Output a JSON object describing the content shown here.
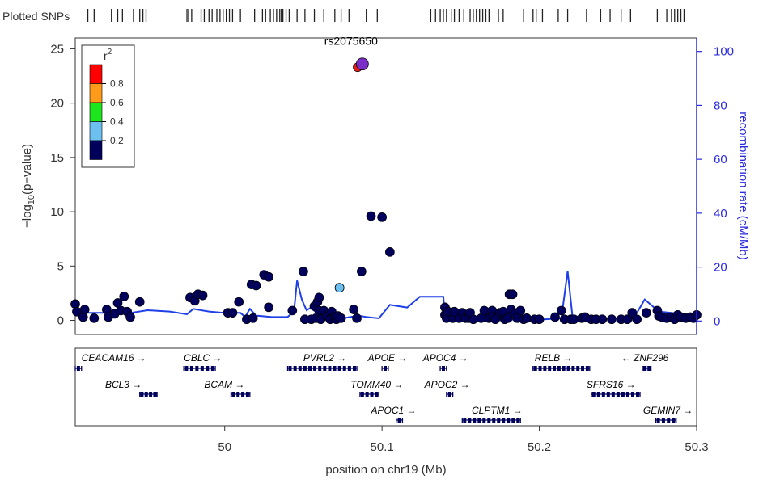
{
  "chart_data": {
    "type": "scatter",
    "title": "",
    "xlabel": "position on chr19 (Mb)",
    "ylabel": "-log10(p-value)",
    "ylabel_parts": {
      "pre": "−log",
      "sub": "10",
      "post": "(p−value)"
    },
    "y2label": "recombination rate (cM/Mb)",
    "xlim": [
      49.905,
      50.3
    ],
    "ylim": [
      -1.3,
      26
    ],
    "y2lim": [
      -5,
      105
    ],
    "x_ticks": [
      50,
      50.1,
      50.2,
      50.3
    ],
    "x_tick_labels": [
      "50",
      "50.1",
      "50.2",
      "50.3"
    ],
    "y_ticks": [
      0,
      5,
      10,
      15,
      20,
      25
    ],
    "y_tick_labels": [
      "0",
      "5",
      "10",
      "15",
      "20",
      "25"
    ],
    "y2_ticks": [
      0,
      20,
      40,
      60,
      80,
      100
    ],
    "y2_tick_labels": [
      "0",
      "20",
      "40",
      "60",
      "80",
      "100"
    ],
    "plotted_snps_label": "Plotted SNPs",
    "lead_snp": {
      "label": "rs2075650",
      "x": 50.0875,
      "y": 23.6,
      "color": "#7b2cc9"
    },
    "legend": {
      "title": "r",
      "title_sup": "2",
      "placement": "top-left",
      "labels": [
        "0.8",
        "0.6",
        "0.4",
        "0.2"
      ],
      "colors": [
        "#ff0000",
        "#ff9a1a",
        "#1ee61e",
        "#6cc0f0",
        "#00005c"
      ]
    },
    "colors": {
      "recomb": "#1f3fe8",
      "point_low": "#00005c",
      "point_mid": "#6cc0f0",
      "point_high": "#e31a1c",
      "axis_right": "#2a2adf",
      "gene": "#00005c"
    },
    "points": [
      [
        49.905,
        1.5
      ],
      [
        49.906,
        0.8
      ],
      [
        49.91,
        0.3
      ],
      [
        49.911,
        1.0
      ],
      [
        49.917,
        0.2
      ],
      [
        49.925,
        1.0
      ],
      [
        49.926,
        0.3
      ],
      [
        49.93,
        0.6
      ],
      [
        49.932,
        1.6
      ],
      [
        49.934,
        0.9
      ],
      [
        49.936,
        2.2
      ],
      [
        49.938,
        0.8
      ],
      [
        49.94,
        0.3
      ],
      [
        49.946,
        1.7
      ],
      [
        49.978,
        2.1
      ],
      [
        49.981,
        1.8
      ],
      [
        49.983,
        2.4
      ],
      [
        49.986,
        2.3
      ],
      [
        50.002,
        0.7
      ],
      [
        50.005,
        0.7
      ],
      [
        50.009,
        1.7
      ],
      [
        50.014,
        0.1
      ],
      [
        50.017,
        3.3
      ],
      [
        50.018,
        0.2
      ],
      [
        50.02,
        3.2
      ],
      [
        50.025,
        4.2
      ],
      [
        50.028,
        4.0
      ],
      [
        50.028,
        1.2
      ],
      [
        50.043,
        0.9
      ],
      [
        50.05,
        4.5
      ],
      [
        50.051,
        0.1
      ],
      [
        50.055,
        0.1
      ],
      [
        50.057,
        1.3
      ],
      [
        50.058,
        0.2
      ],
      [
        50.059,
        1.7
      ],
      [
        50.06,
        2.1
      ],
      [
        50.06,
        0.9
      ],
      [
        50.061,
        0.1
      ],
      [
        50.063,
        0.9
      ],
      [
        50.065,
        0.4
      ],
      [
        50.067,
        0.1
      ],
      [
        50.068,
        0.8
      ],
      [
        50.069,
        0.2
      ],
      [
        50.07,
        0.3
      ],
      [
        50.071,
        0.1
      ],
      [
        50.072,
        0.4
      ],
      [
        50.074,
        0.2
      ],
      [
        50.073,
        3.0
      ],
      [
        50.082,
        1.0
      ],
      [
        50.084,
        0.2
      ],
      [
        50.087,
        4.5
      ],
      [
        50.093,
        9.6
      ],
      [
        50.1,
        9.5
      ],
      [
        50.105,
        6.3
      ],
      [
        50.14,
        1.2
      ],
      [
        50.14,
        0.5
      ],
      [
        50.141,
        0.2
      ],
      [
        50.142,
        0.8
      ],
      [
        50.145,
        0.2
      ],
      [
        50.146,
        0.8
      ],
      [
        50.149,
        0.2
      ],
      [
        50.151,
        0.7
      ],
      [
        50.153,
        0.2
      ],
      [
        50.155,
        0.2
      ],
      [
        50.156,
        0.7
      ],
      [
        50.158,
        0.1
      ],
      [
        50.163,
        0.2
      ],
      [
        50.165,
        0.9
      ],
      [
        50.168,
        0.2
      ],
      [
        50.17,
        0.9
      ],
      [
        50.17,
        0.3
      ],
      [
        50.172,
        0.1
      ],
      [
        50.175,
        0.7
      ],
      [
        50.177,
        0.8
      ],
      [
        50.178,
        0.1
      ],
      [
        50.18,
        0.2
      ],
      [
        50.181,
        2.4
      ],
      [
        50.182,
        1.0
      ],
      [
        50.183,
        2.4
      ],
      [
        50.184,
        0.7
      ],
      [
        50.186,
        0.2
      ],
      [
        50.188,
        0.9
      ],
      [
        50.19,
        0.1
      ],
      [
        50.192,
        0.2
      ],
      [
        50.197,
        0.1
      ],
      [
        50.2,
        0.1
      ],
      [
        50.21,
        0.3
      ],
      [
        50.214,
        0.9
      ],
      [
        50.216,
        0.1
      ],
      [
        50.22,
        0.1
      ],
      [
        50.222,
        0.1
      ],
      [
        50.227,
        0.2
      ],
      [
        50.229,
        0.3
      ],
      [
        50.233,
        0.1
      ],
      [
        50.236,
        0.1
      ],
      [
        50.24,
        0.1
      ],
      [
        50.246,
        0.1
      ],
      [
        50.252,
        0.1
      ],
      [
        50.256,
        0.1
      ],
      [
        50.259,
        0.7
      ],
      [
        50.262,
        0.1
      ],
      [
        50.268,
        0.7
      ],
      [
        50.275,
        0.9
      ],
      [
        50.276,
        0.4
      ],
      [
        50.278,
        0.3
      ],
      [
        50.281,
        0.2
      ],
      [
        50.284,
        0.3
      ],
      [
        50.286,
        0.1
      ],
      [
        50.288,
        0.5
      ],
      [
        50.29,
        0.3
      ],
      [
        50.293,
        0.2
      ],
      [
        50.296,
        0.3
      ],
      [
        50.298,
        0.2
      ],
      [
        50.3,
        0.5
      ]
    ],
    "colored_points": [
      {
        "x": 50.073,
        "y": 3.0,
        "color": "#6cc0f0"
      },
      {
        "x": 50.0845,
        "y": 23.3,
        "color": "#e31a1c"
      }
    ],
    "recomb_rate": [
      [
        49.905,
        3.0
      ],
      [
        49.92,
        3.0
      ],
      [
        49.94,
        3.0
      ],
      [
        49.951,
        4.0
      ],
      [
        49.965,
        3.5
      ],
      [
        49.976,
        2.5
      ],
      [
        49.98,
        4.5
      ],
      [
        49.99,
        3.5
      ],
      [
        50.0,
        3.0
      ],
      [
        50.01,
        3.0
      ],
      [
        50.013,
        1.5
      ],
      [
        50.016,
        4.5
      ],
      [
        50.02,
        2.0
      ],
      [
        50.03,
        1.5
      ],
      [
        50.04,
        1.5
      ],
      [
        50.044,
        3.5
      ],
      [
        50.046,
        15.0
      ],
      [
        50.049,
        8.0
      ],
      [
        50.052,
        4.0
      ],
      [
        50.055,
        5.0
      ],
      [
        50.06,
        2.0
      ],
      [
        50.075,
        1.0
      ],
      [
        50.085,
        2.0
      ],
      [
        50.09,
        1.5
      ],
      [
        50.098,
        1.0
      ],
      [
        50.105,
        6.0
      ],
      [
        50.116,
        5.0
      ],
      [
        50.124,
        9.0
      ],
      [
        50.133,
        9.0
      ],
      [
        50.139,
        9.0
      ],
      [
        50.14,
        1.0
      ],
      [
        50.15,
        0.5
      ],
      [
        50.2,
        0.5
      ],
      [
        50.214,
        1.0
      ],
      [
        50.218,
        18.5
      ],
      [
        50.221,
        2.0
      ],
      [
        50.23,
        1.0
      ],
      [
        50.26,
        1.0
      ],
      [
        50.267,
        8.0
      ],
      [
        50.276,
        3.5
      ],
      [
        50.3,
        2.0
      ]
    ],
    "snp_rug_x": [
      49.913,
      49.917,
      49.928,
      49.932,
      49.935,
      49.942,
      49.946,
      49.948,
      49.95,
      49.976,
      49.977,
      49.979,
      49.985,
      49.987,
      49.99,
      49.992,
      49.995,
      49.997,
      49.999,
      50.001,
      50.003,
      50.005,
      50.01,
      50.019,
      50.024,
      50.026,
      50.029,
      50.031,
      50.033,
      50.035,
      50.036,
      50.037,
      50.039,
      50.041,
      50.046,
      50.051,
      50.057,
      50.063,
      50.07,
      50.074,
      50.079,
      50.09,
      50.097,
      50.131,
      50.134,
      50.137,
      50.139,
      50.141,
      50.144,
      50.146,
      50.149,
      50.152,
      50.156,
      50.158,
      50.16,
      50.162,
      50.164,
      50.166,
      50.168,
      50.174,
      50.177,
      50.19,
      50.196,
      50.198,
      50.202,
      50.212,
      50.218,
      50.23,
      50.239,
      50.245,
      50.252,
      50.258,
      50.275,
      50.281,
      50.284,
      50.286,
      50.288,
      50.29,
      50.292
    ],
    "genes": [
      {
        "name": "CEACAM16",
        "dir": "→",
        "start": 49.905,
        "end": 49.909,
        "row": 0,
        "label_x": 49.909
      },
      {
        "name": "CBLC",
        "dir": "→",
        "start": 49.974,
        "end": 49.994,
        "row": 0,
        "label_x": 49.974
      },
      {
        "name": "PVRL2",
        "dir": "→",
        "start": 50.04,
        "end": 50.084,
        "row": 0,
        "label_x": 50.05
      },
      {
        "name": "APOE",
        "dir": "→",
        "start": 50.1,
        "end": 50.104,
        "row": 0,
        "label_x": 50.091
      },
      {
        "name": "APOC4",
        "dir": "→",
        "start": 50.137,
        "end": 50.141,
        "row": 0,
        "label_x": 50.126
      },
      {
        "name": "RELB",
        "dir": "→",
        "start": 50.196,
        "end": 50.232,
        "row": 0,
        "label_x": 50.197
      },
      {
        "name": "ZNF296",
        "dir": "←",
        "start": 50.266,
        "end": 50.271,
        "row": 0,
        "label_x": 50.252
      },
      {
        "name": "BCL3",
        "dir": "→",
        "start": 49.946,
        "end": 49.957,
        "row": 1,
        "label_x": 49.924
      },
      {
        "name": "BCAM",
        "dir": "→",
        "start": 50.004,
        "end": 50.016,
        "row": 1,
        "label_x": 49.987
      },
      {
        "name": "TOMM40",
        "dir": "→",
        "start": 50.086,
        "end": 50.098,
        "row": 1,
        "label_x": 50.08
      },
      {
        "name": "APOC2",
        "dir": "→",
        "start": 50.141,
        "end": 50.145,
        "row": 1,
        "label_x": 50.127
      },
      {
        "name": "SFRS16",
        "dir": "→",
        "start": 50.233,
        "end": 50.264,
        "row": 1,
        "label_x": 50.23
      },
      {
        "name": "APOC1",
        "dir": "→",
        "start": 50.109,
        "end": 50.113,
        "row": 2,
        "label_x": 50.093
      },
      {
        "name": "CLPTM1",
        "dir": "→",
        "start": 50.151,
        "end": 50.188,
        "row": 2,
        "label_x": 50.157
      },
      {
        "name": "GEMIN7",
        "dir": "→",
        "start": 50.274,
        "end": 50.287,
        "row": 2,
        "label_x": 50.266
      }
    ]
  }
}
